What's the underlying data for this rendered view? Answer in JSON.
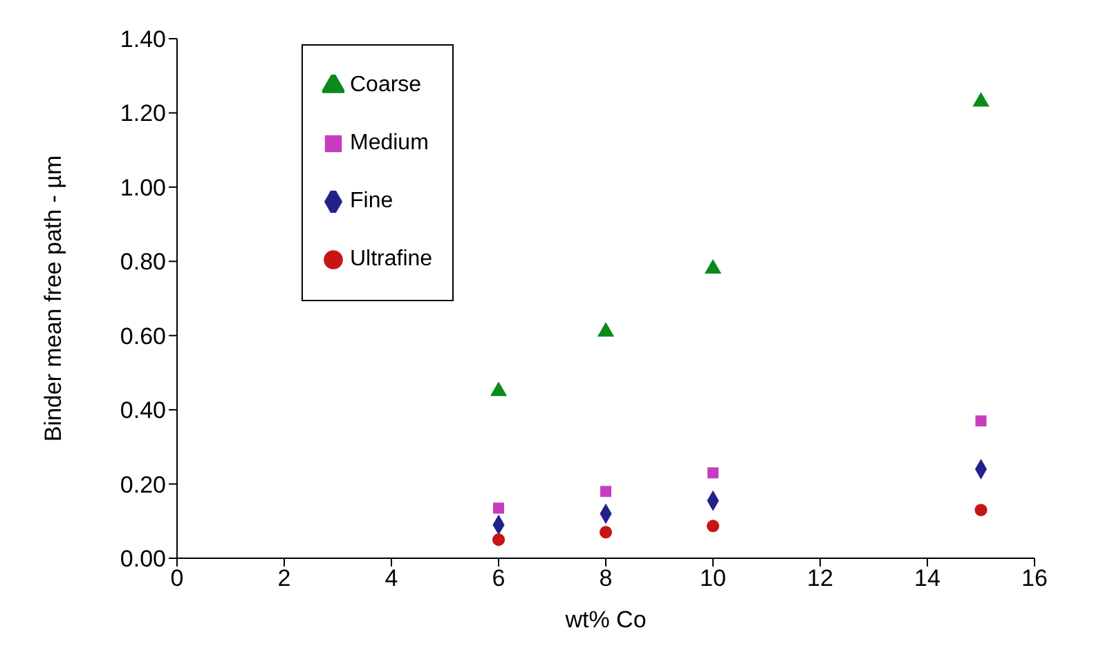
{
  "chart_data": {
    "type": "scatter",
    "xlabel": "wt% Co",
    "ylabel": "Binder mean free path - µm",
    "x": [
      6,
      8,
      10,
      15
    ],
    "series": [
      {
        "name": "Coarse",
        "color": "#0a8a1a",
        "marker": "triangle",
        "values": [
          0.45,
          0.61,
          0.78,
          1.23
        ]
      },
      {
        "name": "Medium",
        "color": "#c83cc0",
        "marker": "square",
        "values": [
          0.135,
          0.18,
          0.23,
          0.37
        ]
      },
      {
        "name": "Fine",
        "color": "#22228a",
        "marker": "diamond",
        "values": [
          0.09,
          0.12,
          0.155,
          0.24
        ]
      },
      {
        "name": "Ultrafine",
        "color": "#c81414",
        "marker": "circle",
        "values": [
          0.05,
          0.07,
          0.087,
          0.13
        ]
      }
    ],
    "xlim": [
      0,
      16
    ],
    "xticks": [
      0,
      2,
      4,
      6,
      8,
      10,
      12,
      14,
      16
    ],
    "ylim": [
      0,
      1.4
    ],
    "yticks": [
      {
        "value": 0,
        "label": "0.00"
      },
      {
        "value": 0.2,
        "label": "0.20"
      },
      {
        "value": 0.4,
        "label": "0.40"
      },
      {
        "value": 0.6,
        "label": "0.60"
      },
      {
        "value": 0.8,
        "label": "0.80"
      },
      {
        "value": 1,
        "label": "1.00"
      },
      {
        "value": 1.2,
        "label": "1.20"
      },
      {
        "value": 1.4,
        "label": "1.40"
      }
    ],
    "legend": "top left",
    "grid": false
  }
}
